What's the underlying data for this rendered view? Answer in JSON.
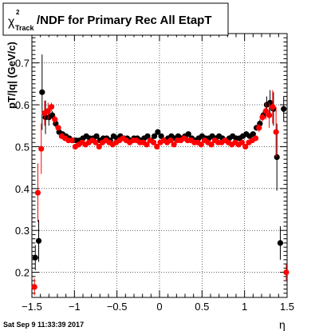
{
  "chart_data": {
    "type": "scatter",
    "title_symbol": "χ",
    "title_sup": "2",
    "title_sub": "Track",
    "title_rest": "/NDF for Primary Rec All EtapT",
    "xlabel": "η",
    "ylabel": "pT/|q| (GeV/c)",
    "footer": "Sat Sep  9 11:33:39 2017",
    "xlim": [
      -1.5,
      1.5
    ],
    "ylim": [
      0.14,
      0.77
    ],
    "xticks": [
      -1.5,
      -1,
      -0.5,
      0,
      0.5,
      1,
      1.5
    ],
    "xtick_labels": [
      "−1.5",
      "−1",
      "−0.5",
      "0",
      "0.5",
      "1",
      "1.5"
    ],
    "yticks": [
      0.2,
      0.3,
      0.4,
      0.5,
      0.6,
      0.7
    ],
    "ytick_labels": [
      "0.2",
      "0.3",
      "0.4",
      "0.5",
      "0.6",
      "0.7"
    ],
    "grid": true,
    "colors": {
      "black_series": "#000000",
      "red_series": "#ff0000"
    },
    "series": [
      {
        "color": "#000000",
        "points": [
          {
            "x": -1.46,
            "y": 0.235,
            "err": 0.03
          },
          {
            "x": -1.42,
            "y": 0.275,
            "err": 0.05
          },
          {
            "x": -1.38,
            "y": 0.63,
            "err": 0.09
          },
          {
            "x": -1.34,
            "y": 0.57,
            "err": 0.04
          },
          {
            "x": -1.3,
            "y": 0.57,
            "err": 0.02
          },
          {
            "x": -1.26,
            "y": 0.575,
            "err": 0.01
          },
          {
            "x": -1.22,
            "y": 0.555,
            "err": 0.01
          },
          {
            "x": -1.18,
            "y": 0.535,
            "err": 0.005
          },
          {
            "x": -1.14,
            "y": 0.53,
            "err": 0.004
          },
          {
            "x": -1.1,
            "y": 0.525,
            "err": 0.003
          },
          {
            "x": -1.06,
            "y": 0.52,
            "err": 0.003
          },
          {
            "x": -1.02,
            "y": 0.515,
            "err": 0.003
          },
          {
            "x": -0.98,
            "y": 0.515,
            "err": 0.003
          },
          {
            "x": -0.94,
            "y": 0.515,
            "err": 0.003
          },
          {
            "x": -0.9,
            "y": 0.52,
            "err": 0.003
          },
          {
            "x": -0.86,
            "y": 0.525,
            "err": 0.003
          },
          {
            "x": -0.82,
            "y": 0.52,
            "err": 0.003
          },
          {
            "x": -0.78,
            "y": 0.52,
            "err": 0.003
          },
          {
            "x": -0.74,
            "y": 0.525,
            "err": 0.003
          },
          {
            "x": -0.7,
            "y": 0.515,
            "err": 0.003
          },
          {
            "x": -0.66,
            "y": 0.52,
            "err": 0.003
          },
          {
            "x": -0.62,
            "y": 0.52,
            "err": 0.003
          },
          {
            "x": -0.58,
            "y": 0.515,
            "err": 0.003
          },
          {
            "x": -0.54,
            "y": 0.525,
            "err": 0.003
          },
          {
            "x": -0.5,
            "y": 0.52,
            "err": 0.003
          },
          {
            "x": -0.46,
            "y": 0.525,
            "err": 0.003
          },
          {
            "x": -0.42,
            "y": 0.52,
            "err": 0.003
          },
          {
            "x": -0.38,
            "y": 0.52,
            "err": 0.003
          },
          {
            "x": -0.34,
            "y": 0.515,
            "err": 0.003
          },
          {
            "x": -0.3,
            "y": 0.52,
            "err": 0.003
          },
          {
            "x": -0.26,
            "y": 0.52,
            "err": 0.003
          },
          {
            "x": -0.22,
            "y": 0.515,
            "err": 0.003
          },
          {
            "x": -0.18,
            "y": 0.52,
            "err": 0.003
          },
          {
            "x": -0.14,
            "y": 0.525,
            "err": 0.003
          },
          {
            "x": -0.1,
            "y": 0.515,
            "err": 0.003
          },
          {
            "x": -0.06,
            "y": 0.525,
            "err": 0.003
          },
          {
            "x": -0.02,
            "y": 0.535,
            "err": 0.003
          },
          {
            "x": 0.02,
            "y": 0.525,
            "err": 0.003
          },
          {
            "x": 0.06,
            "y": 0.515,
            "err": 0.003
          },
          {
            "x": 0.1,
            "y": 0.52,
            "err": 0.003
          },
          {
            "x": 0.14,
            "y": 0.525,
            "err": 0.003
          },
          {
            "x": 0.18,
            "y": 0.52,
            "err": 0.003
          },
          {
            "x": 0.22,
            "y": 0.525,
            "err": 0.003
          },
          {
            "x": 0.26,
            "y": 0.52,
            "err": 0.003
          },
          {
            "x": 0.3,
            "y": 0.525,
            "err": 0.003
          },
          {
            "x": 0.34,
            "y": 0.53,
            "err": 0.003
          },
          {
            "x": 0.38,
            "y": 0.52,
            "err": 0.003
          },
          {
            "x": 0.42,
            "y": 0.515,
            "err": 0.003
          },
          {
            "x": 0.46,
            "y": 0.52,
            "err": 0.003
          },
          {
            "x": 0.5,
            "y": 0.525,
            "err": 0.003
          },
          {
            "x": 0.54,
            "y": 0.52,
            "err": 0.003
          },
          {
            "x": 0.58,
            "y": 0.52,
            "err": 0.003
          },
          {
            "x": 0.62,
            "y": 0.525,
            "err": 0.003
          },
          {
            "x": 0.66,
            "y": 0.52,
            "err": 0.003
          },
          {
            "x": 0.7,
            "y": 0.525,
            "err": 0.003
          },
          {
            "x": 0.74,
            "y": 0.52,
            "err": 0.003
          },
          {
            "x": 0.78,
            "y": 0.515,
            "err": 0.003
          },
          {
            "x": 0.82,
            "y": 0.52,
            "err": 0.003
          },
          {
            "x": 0.86,
            "y": 0.525,
            "err": 0.003
          },
          {
            "x": 0.9,
            "y": 0.52,
            "err": 0.003
          },
          {
            "x": 0.94,
            "y": 0.52,
            "err": 0.003
          },
          {
            "x": 0.98,
            "y": 0.525,
            "err": 0.003
          },
          {
            "x": 1.02,
            "y": 0.53,
            "err": 0.003
          },
          {
            "x": 1.06,
            "y": 0.525,
            "err": 0.003
          },
          {
            "x": 1.1,
            "y": 0.53,
            "err": 0.004
          },
          {
            "x": 1.14,
            "y": 0.545,
            "err": 0.005
          },
          {
            "x": 1.18,
            "y": 0.555,
            "err": 0.01
          },
          {
            "x": 1.22,
            "y": 0.575,
            "err": 0.01
          },
          {
            "x": 1.26,
            "y": 0.6,
            "err": 0.02
          },
          {
            "x": 1.3,
            "y": 0.605,
            "err": 0.03
          },
          {
            "x": 1.34,
            "y": 0.59,
            "err": 0.04
          },
          {
            "x": 1.38,
            "y": 0.475,
            "err": 0.08
          },
          {
            "x": 1.42,
            "y": 0.27,
            "err": 0.04
          },
          {
            "x": 1.46,
            "y": 0.59,
            "err": 0.03
          }
        ]
      },
      {
        "color": "#ff0000",
        "points": [
          {
            "x": -1.47,
            "y": 0.165,
            "err": 0.02
          },
          {
            "x": -1.43,
            "y": 0.39,
            "err": 0.07
          },
          {
            "x": -1.39,
            "y": 0.495,
            "err": 0.06
          },
          {
            "x": -1.35,
            "y": 0.58,
            "err": 0.03
          },
          {
            "x": -1.31,
            "y": 0.585,
            "err": 0.02
          },
          {
            "x": -1.27,
            "y": 0.595,
            "err": 0.01
          },
          {
            "x": -1.23,
            "y": 0.565,
            "err": 0.01
          },
          {
            "x": -1.19,
            "y": 0.545,
            "err": 0.005
          },
          {
            "x": -1.15,
            "y": 0.525,
            "err": 0.004
          },
          {
            "x": -1.11,
            "y": 0.52,
            "err": 0.003
          },
          {
            "x": -1.07,
            "y": 0.515,
            "err": 0.003
          },
          {
            "x": -1.03,
            "y": 0.515,
            "err": 0.003
          },
          {
            "x": -0.99,
            "y": 0.5,
            "err": 0.003
          },
          {
            "x": -0.95,
            "y": 0.505,
            "err": 0.003
          },
          {
            "x": -0.91,
            "y": 0.51,
            "err": 0.003
          },
          {
            "x": -0.87,
            "y": 0.505,
            "err": 0.003
          },
          {
            "x": -0.83,
            "y": 0.51,
            "err": 0.003
          },
          {
            "x": -0.79,
            "y": 0.515,
            "err": 0.003
          },
          {
            "x": -0.75,
            "y": 0.51,
            "err": 0.003
          },
          {
            "x": -0.71,
            "y": 0.5,
            "err": 0.003
          },
          {
            "x": -0.67,
            "y": 0.51,
            "err": 0.003
          },
          {
            "x": -0.63,
            "y": 0.515,
            "err": 0.003
          },
          {
            "x": -0.59,
            "y": 0.51,
            "err": 0.003
          },
          {
            "x": -0.55,
            "y": 0.505,
            "err": 0.003
          },
          {
            "x": -0.51,
            "y": 0.51,
            "err": 0.003
          },
          {
            "x": -0.47,
            "y": 0.515,
            "err": 0.003
          },
          {
            "x": -0.43,
            "y": 0.52,
            "err": 0.003
          },
          {
            "x": -0.39,
            "y": 0.515,
            "err": 0.003
          },
          {
            "x": -0.35,
            "y": 0.51,
            "err": 0.003
          },
          {
            "x": -0.31,
            "y": 0.515,
            "err": 0.003
          },
          {
            "x": -0.27,
            "y": 0.515,
            "err": 0.003
          },
          {
            "x": -0.23,
            "y": 0.51,
            "err": 0.003
          },
          {
            "x": -0.19,
            "y": 0.51,
            "err": 0.003
          },
          {
            "x": -0.15,
            "y": 0.505,
            "err": 0.003
          },
          {
            "x": -0.11,
            "y": 0.515,
            "err": 0.003
          },
          {
            "x": -0.07,
            "y": 0.51,
            "err": 0.003
          },
          {
            "x": -0.03,
            "y": 0.5,
            "err": 0.003
          },
          {
            "x": 0.01,
            "y": 0.51,
            "err": 0.003
          },
          {
            "x": 0.05,
            "y": 0.515,
            "err": 0.003
          },
          {
            "x": 0.09,
            "y": 0.51,
            "err": 0.003
          },
          {
            "x": 0.13,
            "y": 0.515,
            "err": 0.003
          },
          {
            "x": 0.17,
            "y": 0.505,
            "err": 0.003
          },
          {
            "x": 0.21,
            "y": 0.515,
            "err": 0.003
          },
          {
            "x": 0.25,
            "y": 0.515,
            "err": 0.003
          },
          {
            "x": 0.29,
            "y": 0.52,
            "err": 0.003
          },
          {
            "x": 0.33,
            "y": 0.515,
            "err": 0.003
          },
          {
            "x": 0.37,
            "y": 0.515,
            "err": 0.003
          },
          {
            "x": 0.41,
            "y": 0.51,
            "err": 0.003
          },
          {
            "x": 0.45,
            "y": 0.51,
            "err": 0.003
          },
          {
            "x": 0.49,
            "y": 0.505,
            "err": 0.003
          },
          {
            "x": 0.53,
            "y": 0.515,
            "err": 0.003
          },
          {
            "x": 0.57,
            "y": 0.51,
            "err": 0.003
          },
          {
            "x": 0.61,
            "y": 0.505,
            "err": 0.003
          },
          {
            "x": 0.65,
            "y": 0.515,
            "err": 0.003
          },
          {
            "x": 0.69,
            "y": 0.51,
            "err": 0.003
          },
          {
            "x": 0.73,
            "y": 0.51,
            "err": 0.003
          },
          {
            "x": 0.77,
            "y": 0.515,
            "err": 0.003
          },
          {
            "x": 0.81,
            "y": 0.51,
            "err": 0.003
          },
          {
            "x": 0.85,
            "y": 0.505,
            "err": 0.003
          },
          {
            "x": 0.89,
            "y": 0.51,
            "err": 0.003
          },
          {
            "x": 0.93,
            "y": 0.505,
            "err": 0.003
          },
          {
            "x": 0.97,
            "y": 0.51,
            "err": 0.003
          },
          {
            "x": 1.01,
            "y": 0.5,
            "err": 0.003
          },
          {
            "x": 1.05,
            "y": 0.51,
            "err": 0.003
          },
          {
            "x": 1.09,
            "y": 0.515,
            "err": 0.004
          },
          {
            "x": 1.13,
            "y": 0.52,
            "err": 0.005
          },
          {
            "x": 1.17,
            "y": 0.545,
            "err": 0.01
          },
          {
            "x": 1.21,
            "y": 0.57,
            "err": 0.01
          },
          {
            "x": 1.25,
            "y": 0.585,
            "err": 0.02
          },
          {
            "x": 1.29,
            "y": 0.575,
            "err": 0.03
          },
          {
            "x": 1.33,
            "y": 0.595,
            "err": 0.04
          },
          {
            "x": 1.37,
            "y": 0.535,
            "err": 0.06
          },
          {
            "x": 1.49,
            "y": 0.2,
            "err": 0.02
          }
        ]
      }
    ]
  }
}
